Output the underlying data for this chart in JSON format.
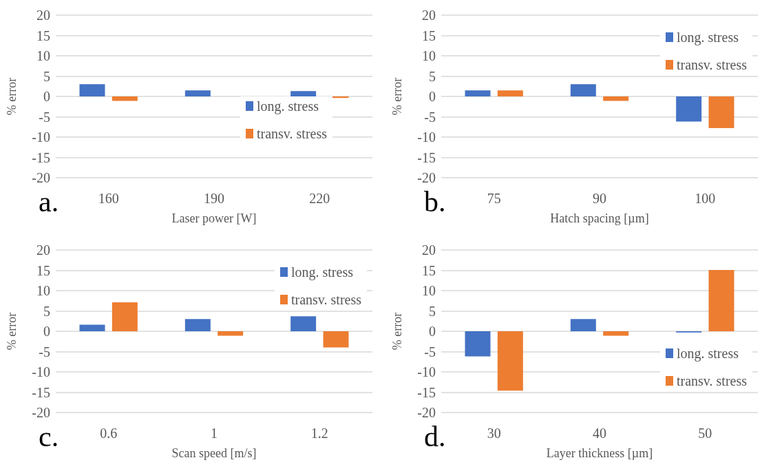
{
  "chart_data": [
    {
      "type": "bar",
      "categories": [
        "160",
        "190",
        "220"
      ],
      "xlabel": "Laser power [W]",
      "ylabel": "% error",
      "ylim": [
        -20,
        20
      ],
      "yticks": [
        -20,
        -15,
        -10,
        -5,
        0,
        5,
        10,
        15,
        20
      ],
      "grid": "y",
      "legend": "right",
      "annotations": [
        "a."
      ],
      "series": [
        {
          "name": "long. stress",
          "color": "#4472c4",
          "values": [
            3,
            1.5,
            1.3
          ]
        },
        {
          "name": "transv. stress",
          "color": "#ed7d31",
          "values": [
            -1.1,
            0,
            -0.4
          ]
        }
      ]
    },
    {
      "type": "bar",
      "categories": [
        "75",
        "90",
        "100"
      ],
      "xlabel": "Hatch spacing [µm]",
      "ylabel": "% error",
      "ylim": [
        -20,
        20
      ],
      "yticks": [
        -20,
        -15,
        -10,
        -5,
        0,
        5,
        10,
        15,
        20
      ],
      "grid": "y",
      "legend": "top right",
      "annotations": [
        "b."
      ],
      "series": [
        {
          "name": "long. stress",
          "color": "#4472c4",
          "values": [
            1.5,
            3,
            -6.2
          ]
        },
        {
          "name": "transv. stress",
          "color": "#ed7d31",
          "values": [
            1.5,
            -1.1,
            -7.8
          ]
        }
      ]
    },
    {
      "type": "bar",
      "categories": [
        "0.6",
        "1",
        "1.2"
      ],
      "xlabel": "Scan speed [m/s]",
      "ylabel": "% error",
      "ylim": [
        -20,
        20
      ],
      "yticks": [
        -20,
        -15,
        -10,
        -5,
        0,
        5,
        10,
        15,
        20
      ],
      "grid": "y",
      "legend": "top right",
      "annotations": [
        "c."
      ],
      "series": [
        {
          "name": "long. stress",
          "color": "#4472c4",
          "values": [
            1.6,
            3,
            3.7
          ]
        },
        {
          "name": "transv. stress",
          "color": "#ed7d31",
          "values": [
            7.1,
            -1.1,
            -4
          ]
        }
      ]
    },
    {
      "type": "bar",
      "categories": [
        "30",
        "40",
        "50"
      ],
      "xlabel": "Layer thickness [µm]",
      "ylabel": "% error",
      "ylim": [
        -20,
        20
      ],
      "yticks": [
        -20,
        -15,
        -10,
        -5,
        0,
        5,
        10,
        15,
        20
      ],
      "grid": "y",
      "legend": "bottom right",
      "annotations": [
        "d."
      ],
      "series": [
        {
          "name": "long. stress",
          "color": "#4472c4",
          "values": [
            -6.2,
            3,
            -0.3
          ]
        },
        {
          "name": "transv. stress",
          "color": "#ed7d31",
          "values": [
            -14.6,
            -1.1,
            15.1
          ]
        }
      ]
    }
  ]
}
